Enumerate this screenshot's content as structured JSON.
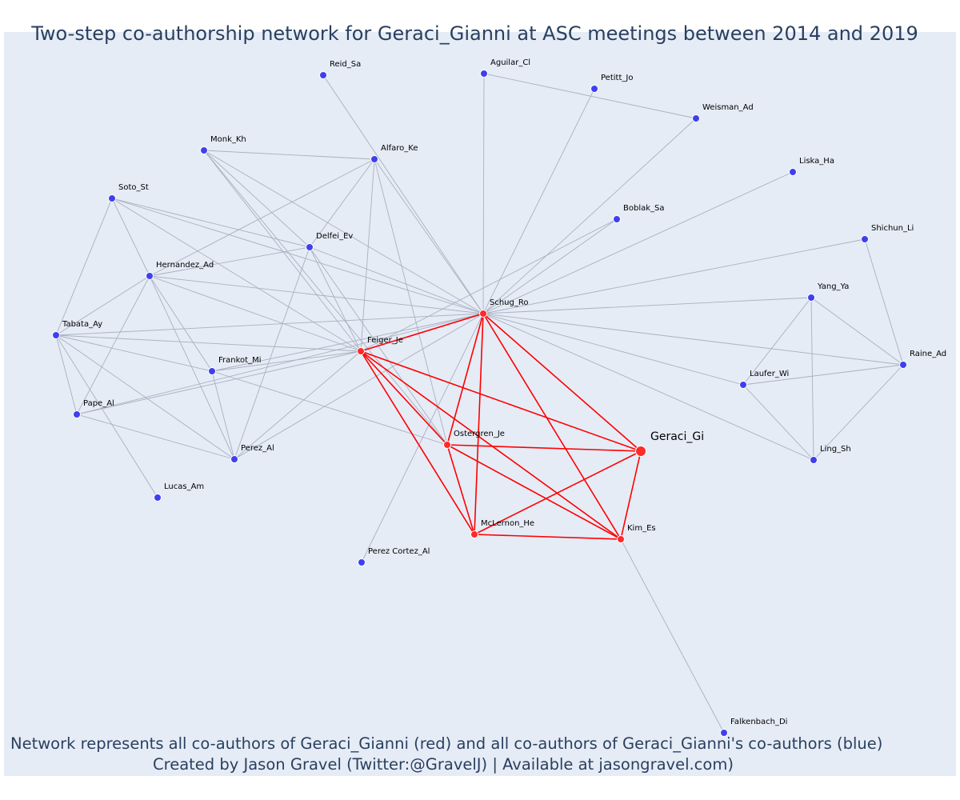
{
  "title": "Two-step co-authorship network for Geraci_Gianni at ASC meetings between 2014 and 2019",
  "caption": {
    "line1": "Network represents all co-authors of Geraci_Gianni (red) and all co-authors of Geraci_Gianni's co-authors (blue)",
    "line2": "Created by Jason Gravel (Twitter:@GravelJ) | Available at jasongravel.com)"
  },
  "colors": {
    "background": "#e5ecf6",
    "red_node": "#ff2a2a",
    "blue_node": "#3f3ff0",
    "red_edge": "#ff0000",
    "gray_edge": "#aab0c0",
    "text": "#2a3f5f"
  },
  "nodes": [
    {
      "id": "Reid_Sa",
      "group": "coauthor-of-coauthor"
    },
    {
      "id": "Aguilar_Cl",
      "group": "coauthor-of-coauthor"
    },
    {
      "id": "Petitt_Jo",
      "group": "coauthor-of-coauthor"
    },
    {
      "id": "Weisman_Ad",
      "group": "coauthor-of-coauthor"
    },
    {
      "id": "Liska_Ha",
      "group": "coauthor-of-coauthor"
    },
    {
      "id": "Monk_Kh",
      "group": "coauthor-of-coauthor"
    },
    {
      "id": "Alfaro_Ke",
      "group": "coauthor-of-coauthor"
    },
    {
      "id": "Soto_St",
      "group": "coauthor-of-coauthor"
    },
    {
      "id": "Boblak_Sa",
      "group": "coauthor-of-coauthor"
    },
    {
      "id": "Shichun_Li",
      "group": "coauthor-of-coauthor"
    },
    {
      "id": "Delfei_Ev",
      "group": "coauthor-of-coauthor"
    },
    {
      "id": "Hernandez_Ad",
      "group": "coauthor-of-coauthor"
    },
    {
      "id": "Yang_Ya",
      "group": "coauthor-of-coauthor"
    },
    {
      "id": "Schug_Ro",
      "group": "coauthor"
    },
    {
      "id": "Tabata_Ay",
      "group": "coauthor-of-coauthor"
    },
    {
      "id": "Feiger_Je",
      "group": "coauthor"
    },
    {
      "id": "Raine_Ad",
      "group": "coauthor-of-coauthor"
    },
    {
      "id": "Frankot_Mi",
      "group": "coauthor-of-coauthor"
    },
    {
      "id": "Laufer_Wi",
      "group": "coauthor-of-coauthor"
    },
    {
      "id": "Pape_Al",
      "group": "coauthor-of-coauthor"
    },
    {
      "id": "Ostergren_Je",
      "group": "coauthor"
    },
    {
      "id": "Geraci_Gi",
      "group": "focal"
    },
    {
      "id": "Perez_Al",
      "group": "coauthor-of-coauthor"
    },
    {
      "id": "Ling_Sh",
      "group": "coauthor-of-coauthor"
    },
    {
      "id": "Lucas_Am",
      "group": "coauthor-of-coauthor"
    },
    {
      "id": "McLernon_He",
      "group": "coauthor"
    },
    {
      "id": "Kim_Es",
      "group": "coauthor"
    },
    {
      "id": "Perez Cortez_Al",
      "group": "coauthor-of-coauthor"
    },
    {
      "id": "Falkenbach_Di",
      "group": "coauthor-of-coauthor"
    }
  ],
  "edges": [
    [
      "Geraci_Gi",
      "Schug_Ro"
    ],
    [
      "Geraci_Gi",
      "Feiger_Je"
    ],
    [
      "Geraci_Gi",
      "Ostergren_Je"
    ],
    [
      "Geraci_Gi",
      "McLernon_He"
    ],
    [
      "Geraci_Gi",
      "Kim_Es"
    ],
    [
      "Schug_Ro",
      "Feiger_Je"
    ],
    [
      "Schug_Ro",
      "Ostergren_Je"
    ],
    [
      "Schug_Ro",
      "McLernon_He"
    ],
    [
      "Schug_Ro",
      "Kim_Es"
    ],
    [
      "Feiger_Je",
      "Ostergren_Je"
    ],
    [
      "Feiger_Je",
      "McLernon_He"
    ],
    [
      "Feiger_Je",
      "Kim_Es"
    ],
    [
      "Ostergren_Je",
      "McLernon_He"
    ],
    [
      "Ostergren_Je",
      "Kim_Es"
    ],
    [
      "McLernon_He",
      "Kim_Es"
    ],
    [
      "Schug_Ro",
      "Reid_Sa"
    ],
    [
      "Schug_Ro",
      "Aguilar_Cl"
    ],
    [
      "Schug_Ro",
      "Petitt_Jo"
    ],
    [
      "Schug_Ro",
      "Weisman_Ad"
    ],
    [
      "Schug_Ro",
      "Liska_Ha"
    ],
    [
      "Schug_Ro",
      "Boblak_Sa"
    ],
    [
      "Schug_Ro",
      "Shichun_Li"
    ],
    [
      "Schug_Ro",
      "Yang_Ya"
    ],
    [
      "Schug_Ro",
      "Raine_Ad"
    ],
    [
      "Schug_Ro",
      "Laufer_Wi"
    ],
    [
      "Schug_Ro",
      "Ling_Sh"
    ],
    [
      "Schug_Ro",
      "Alfaro_Ke"
    ],
    [
      "Schug_Ro",
      "Monk_Kh"
    ],
    [
      "Schug_Ro",
      "Soto_St"
    ],
    [
      "Schug_Ro",
      "Delfei_Ev"
    ],
    [
      "Schug_Ro",
      "Hernandez_Ad"
    ],
    [
      "Schug_Ro",
      "Tabata_Ay"
    ],
    [
      "Schug_Ro",
      "Frankot_Mi"
    ],
    [
      "Schug_Ro",
      "Pape_Al"
    ],
    [
      "Schug_Ro",
      "Perez_Al"
    ],
    [
      "Schug_Ro",
      "Perez Cortez_Al"
    ],
    [
      "Aguilar_Cl",
      "Weisman_Ad"
    ],
    [
      "Feiger_Je",
      "Monk_Kh"
    ],
    [
      "Feiger_Je",
      "Alfaro_Ke"
    ],
    [
      "Feiger_Je",
      "Delfei_Ev"
    ],
    [
      "Feiger_Je",
      "Soto_St"
    ],
    [
      "Feiger_Je",
      "Hernandez_Ad"
    ],
    [
      "Feiger_Je",
      "Tabata_Ay"
    ],
    [
      "Feiger_Je",
      "Frankot_Mi"
    ],
    [
      "Feiger_Je",
      "Pape_Al"
    ],
    [
      "Feiger_Je",
      "Perez_Al"
    ],
    [
      "Feiger_Je",
      "Boblak_Sa"
    ],
    [
      "Ostergren_Je",
      "Monk_Kh"
    ],
    [
      "Ostergren_Je",
      "Alfaro_Ke"
    ],
    [
      "Ostergren_Je",
      "Delfei_Ev"
    ],
    [
      "Ostergren_Je",
      "Frankot_Mi"
    ],
    [
      "Kim_Es",
      "Falkenbach_Di"
    ],
    [
      "Monk_Kh",
      "Alfaro_Ke"
    ],
    [
      "Monk_Kh",
      "Delfei_Ev"
    ],
    [
      "Alfaro_Ke",
      "Hernandez_Ad"
    ],
    [
      "Alfaro_Ke",
      "Delfei_Ev"
    ],
    [
      "Soto_St",
      "Hernandez_Ad"
    ],
    [
      "Soto_St",
      "Tabata_Ay"
    ],
    [
      "Soto_St",
      "Delfei_Ev"
    ],
    [
      "Hernandez_Ad",
      "Delfei_Ev"
    ],
    [
      "Hernandez_Ad",
      "Tabata_Ay"
    ],
    [
      "Hernandez_Ad",
      "Pape_Al"
    ],
    [
      "Hernandez_Ad",
      "Perez_Al"
    ],
    [
      "Hernandez_Ad",
      "Frankot_Mi"
    ],
    [
      "Delfei_Ev",
      "Perez_Al"
    ],
    [
      "Tabata_Ay",
      "Pape_Al"
    ],
    [
      "Tabata_Ay",
      "Frankot_Mi"
    ],
    [
      "Tabata_Ay",
      "Perez_Al"
    ],
    [
      "Tabata_Ay",
      "Lucas_Am"
    ],
    [
      "Frankot_Mi",
      "Perez_Al"
    ],
    [
      "Pape_Al",
      "Perez_Al"
    ],
    [
      "Yang_Ya",
      "Laufer_Wi"
    ],
    [
      "Yang_Ya",
      "Raine_Ad"
    ],
    [
      "Yang_Ya",
      "Ling_Sh"
    ],
    [
      "Shichun_Li",
      "Raine_Ad"
    ],
    [
      "Laufer_Wi",
      "Raine_Ad"
    ],
    [
      "Laufer_Wi",
      "Ling_Sh"
    ],
    [
      "Raine_Ad",
      "Ling_Sh"
    ]
  ]
}
